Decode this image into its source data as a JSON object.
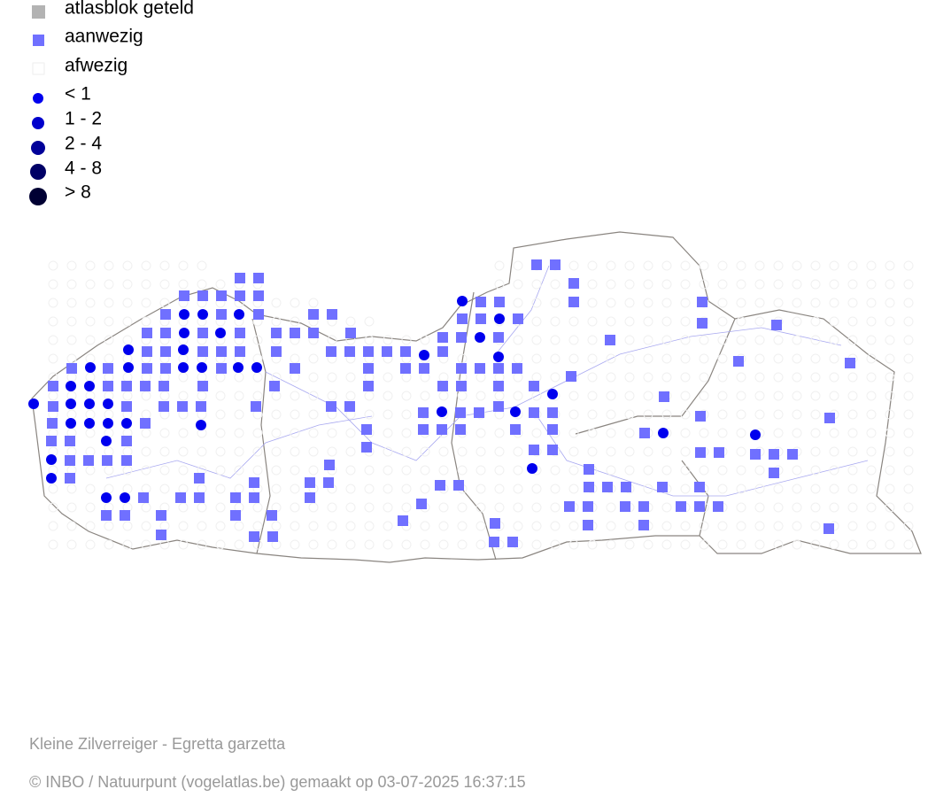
{
  "legend": {
    "items": [
      "atlasblok geteld",
      "aanwezig",
      "afwezig",
      "< 1",
      "1 - 2",
      "2 - 4",
      "4 - 8",
      "> 8"
    ]
  },
  "footer": {
    "species": "Kleine Zilverreiger - Egretta garzetta",
    "credit": "© INBO / Natuurpunt (vogelatlas.be) gemaakt op 03-07-2025 16:37:15"
  }
}
